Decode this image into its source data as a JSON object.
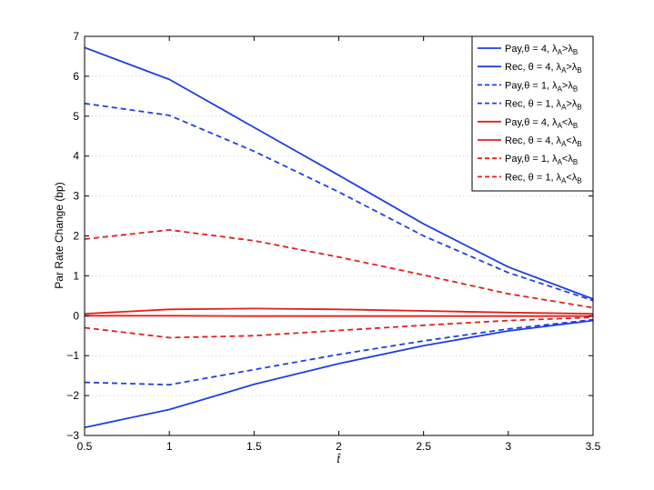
{
  "chart_data": {
    "type": "line",
    "xlabel": "t̂",
    "ylabel": "Par Rate Change (bp)",
    "xlim": [
      0.5,
      3.5
    ],
    "ylim": [
      -3,
      7
    ],
    "x_ticks": [
      "0.5",
      "1",
      "1.5",
      "2",
      "2.5",
      "3",
      "3.5"
    ],
    "y_ticks": [
      "−3",
      "−2",
      "−1",
      "0",
      "1",
      "2",
      "3",
      "4",
      "5",
      "6",
      "7"
    ],
    "grid": "horizontal dotted",
    "legend_position": "top-right",
    "x": [
      0.5,
      1,
      1.5,
      2,
      2.5,
      3,
      3.5
    ],
    "series": [
      {
        "name": "Pay, θ = 4, λA>λB",
        "legend_main": "Pay,θ = 4, λ",
        "sub1": "A",
        "cmp": ">",
        "mid": "λ",
        "sub2": "B",
        "color": "#1f3fe0",
        "dash": "solid",
        "values": [
          6.72,
          5.92,
          4.72,
          3.52,
          2.3,
          1.22,
          0.42
        ]
      },
      {
        "name": "Rec, θ = 4, λA>λB",
        "legend_main": "Rec, θ = 4, λ",
        "sub1": "A",
        "cmp": ">",
        "mid": "λ",
        "sub2": "B",
        "color": "#1f3fe0",
        "dash": "solid",
        "values": [
          -2.8,
          -2.35,
          -1.72,
          -1.2,
          -0.75,
          -0.38,
          -0.12
        ]
      },
      {
        "name": "Pay, θ = 1, λA>λB",
        "legend_main": "Pay,θ = 1, λ",
        "sub1": "A",
        "cmp": ">",
        "mid": "λ",
        "sub2": "B",
        "color": "#1f3fe0",
        "dash": "dashed",
        "values": [
          5.32,
          5.02,
          4.12,
          3.1,
          2.0,
          1.08,
          0.38
        ]
      },
      {
        "name": "Rec, θ = 1, λA>λB",
        "legend_main": "Rec, θ = 1, λ",
        "sub1": "A",
        "cmp": ">",
        "mid": "λ",
        "sub2": "B",
        "color": "#1f3fe0",
        "dash": "dashed",
        "values": [
          -1.67,
          -1.73,
          -1.35,
          -0.97,
          -0.63,
          -0.33,
          -0.1
        ]
      },
      {
        "name": "Pay, θ = 4, λA<λB",
        "legend_main": "Pay,θ = 4, λ",
        "sub1": "A",
        "cmp": "<",
        "mid": "λ",
        "sub2": "B",
        "color": "#e0201c",
        "dash": "solid",
        "values": [
          0.05,
          0.16,
          0.18,
          0.16,
          0.12,
          0.08,
          0.05
        ]
      },
      {
        "name": "Rec, θ = 4, λA<λB",
        "legend_main": "Rec, θ = 4, λ",
        "sub1": "A",
        "cmp": "<",
        "mid": "λ",
        "sub2": "B",
        "color": "#e0201c",
        "dash": "solid",
        "values": [
          0.0,
          0.0,
          -0.01,
          -0.01,
          -0.01,
          -0.01,
          -0.01
        ]
      },
      {
        "name": "Pay, θ = 1, λA<λB",
        "legend_main": "Pay,θ = 1, λ",
        "sub1": "A",
        "cmp": "<",
        "mid": "λ",
        "sub2": "B",
        "color": "#e0201c",
        "dash": "dashed",
        "values": [
          1.92,
          2.15,
          1.88,
          1.47,
          1.02,
          0.55,
          0.2
        ]
      },
      {
        "name": "Rec, θ = 1, λA<λB",
        "legend_main": "Rec, θ = 1, λ",
        "sub1": "A",
        "cmp": "<",
        "mid": "λ",
        "sub2": "B",
        "color": "#e0201c",
        "dash": "dashed",
        "values": [
          -0.3,
          -0.55,
          -0.5,
          -0.37,
          -0.24,
          -0.12,
          -0.04
        ]
      }
    ]
  }
}
